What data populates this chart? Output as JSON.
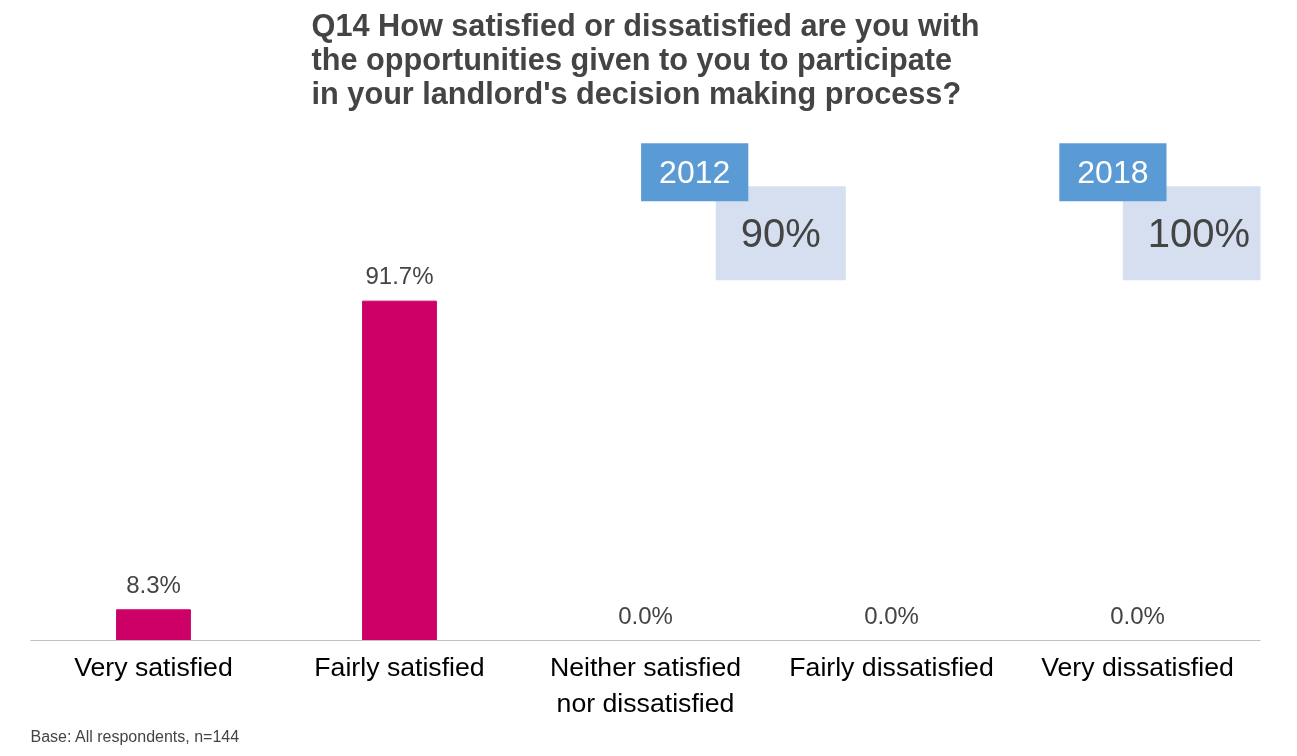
{
  "chart_data": {
    "type": "bar",
    "title": "Q14 How satisfied or dissatisfied are you with the opportunities given to you to participate in your landlord's decision making process?",
    "categories": [
      "Very satisfied",
      "Fairly satisfied",
      "Neither satisfied nor dissatisfied",
      "Fairly dissatisfied",
      "Very dissatisfied"
    ],
    "values": [
      8.3,
      91.7,
      0.0,
      0.0,
      0.0
    ],
    "value_labels": [
      "8.3%",
      "91.7%",
      "0.0%",
      "0.0%",
      "0.0%"
    ],
    "color": "#cc0066",
    "annotations": [
      "2012",
      "90%",
      "2018",
      "100%",
      "Base: All respondents, n=144"
    ],
    "grid": false
  }
}
